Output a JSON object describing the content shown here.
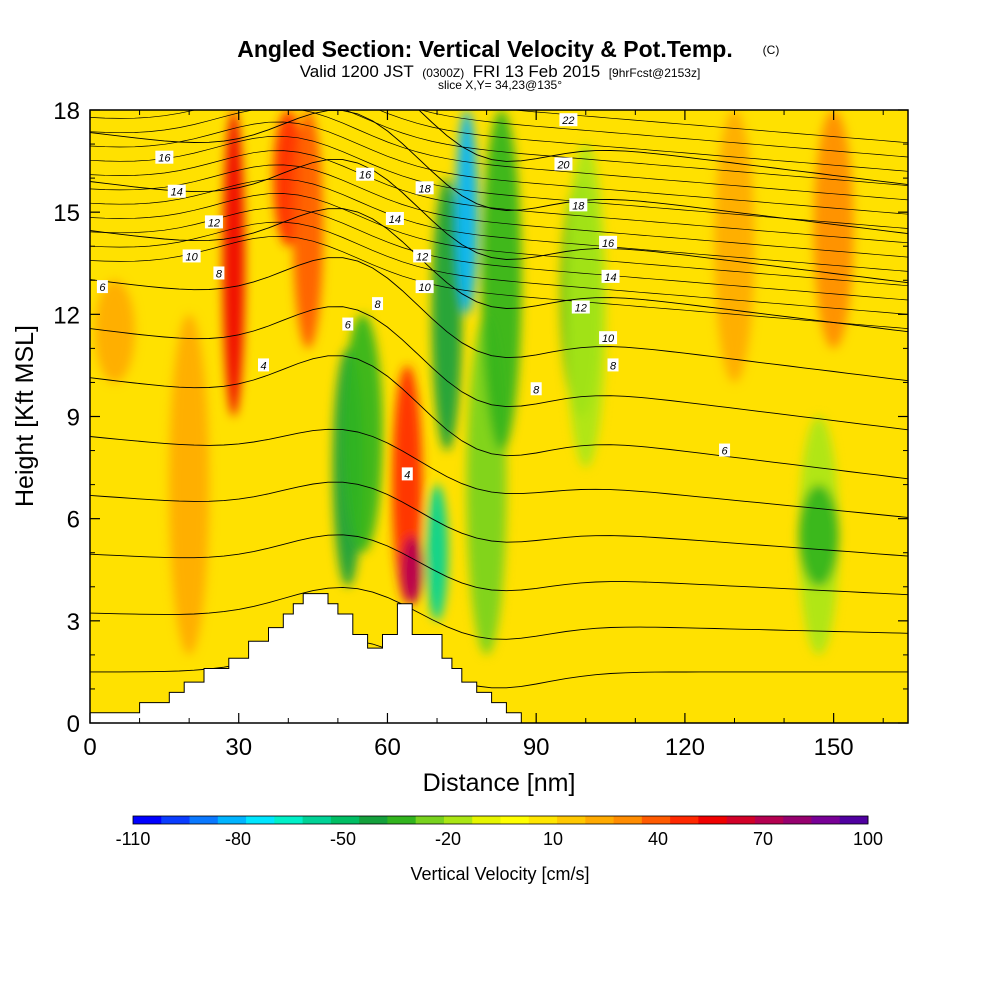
{
  "chart_data": {
    "type": "heatmap",
    "title": "Angled Section: Vertical Velocity & Pot.Temp.",
    "title_unit": "(C)",
    "subtitle": {
      "valid": "Valid 1200 JST",
      "zulu": "(0300Z)",
      "date": "FRI 13 Feb 2015",
      "forecast": "[9hrFcst@2153z]"
    },
    "slice_label": "slice X,Y= 34,23@135°",
    "xlabel": "Distance [nm]",
    "ylabel": "Height [Kft MSL]",
    "xlim": [
      0,
      165
    ],
    "ylim": [
      0,
      18
    ],
    "x_ticks": [
      "0",
      "30",
      "60",
      "90",
      "120",
      "150"
    ],
    "y_ticks": [
      "0",
      "3",
      "6",
      "9",
      "12",
      "15",
      "18"
    ],
    "colorbar": {
      "label": "Vertical Velocity [cm/s]",
      "tick_labels": [
        "-110",
        "-80",
        "-50",
        "-20",
        "10",
        "40",
        "70",
        "100"
      ],
      "colors": [
        "#0000ff",
        "#0a3cff",
        "#0a78ff",
        "#00b4ff",
        "#00e6ff",
        "#00f0c8",
        "#00d296",
        "#00be64",
        "#14a03c",
        "#32b41e",
        "#78d21e",
        "#aae614",
        "#e6f500",
        "#ffff00",
        "#ffe600",
        "#ffc800",
        "#ffaa00",
        "#ff8c00",
        "#ff5a00",
        "#ff2800",
        "#f00000",
        "#d20028",
        "#b40050",
        "#96006e",
        "#780096",
        "#5000a0"
      ]
    },
    "terrain_profile": {
      "x": [
        0,
        10,
        10,
        16,
        16,
        19,
        19,
        23,
        23,
        28,
        28,
        32,
        32,
        36,
        36,
        39,
        39,
        41,
        41,
        43,
        43,
        48,
        48,
        50,
        50,
        53,
        53,
        56,
        56,
        59,
        59,
        62,
        62,
        65,
        65,
        71,
        71,
        73,
        73,
        75,
        75,
        78,
        78,
        81,
        81,
        84,
        84,
        87,
        87,
        92,
        92,
        165
      ],
      "y": [
        0.3,
        0.3,
        0.6,
        0.6,
        0.9,
        0.9,
        1.2,
        1.2,
        1.6,
        1.6,
        1.9,
        1.9,
        2.4,
        2.4,
        2.8,
        2.8,
        3.2,
        3.2,
        3.5,
        3.5,
        3.8,
        3.8,
        3.5,
        3.5,
        3.2,
        3.2,
        2.6,
        2.6,
        2.2,
        2.2,
        2.6,
        2.6,
        3.5,
        3.5,
        2.6,
        2.6,
        1.9,
        1.9,
        1.6,
        1.6,
        1.2,
        1.2,
        0.9,
        0.9,
        0.6,
        0.6,
        0.3,
        0.3,
        0.0,
        0.0,
        0.0,
        0.0
      ]
    },
    "vertical_velocity_features": [
      {
        "x": 29,
        "y_range": [
          9,
          18
        ],
        "value": 55
      },
      {
        "x": 40,
        "y_range": [
          14,
          18
        ],
        "value": 45
      },
      {
        "x": 44,
        "y_range": [
          11,
          18
        ],
        "value": 40
      },
      {
        "x": 52,
        "y_range": [
          4,
          11
        ],
        "value": -45
      },
      {
        "x": 55,
        "y_range": [
          5,
          12
        ],
        "value": -30
      },
      {
        "x": 64,
        "y_range": [
          3.5,
          10.5
        ],
        "value": 45
      },
      {
        "x": 65,
        "y_range": [
          3.5,
          5.5
        ],
        "value": 70
      },
      {
        "x": 70,
        "y_range": [
          3,
          7
        ],
        "value": -60
      },
      {
        "x": 72,
        "y_range": [
          8,
          16
        ],
        "value": -45
      },
      {
        "x": 76,
        "y_range": [
          12,
          18
        ],
        "value": -85
      },
      {
        "x": 80,
        "y_range": [
          2,
          12
        ],
        "value": -25
      },
      {
        "x": 83,
        "y_range": [
          8,
          18
        ],
        "value": -30
      },
      {
        "x": 99,
        "y_range": [
          9,
          16
        ],
        "value": -30
      },
      {
        "x": 100,
        "y_range": [
          7.5,
          17
        ],
        "value": -20
      },
      {
        "x": 147,
        "y_range": [
          2,
          9
        ],
        "value": -20
      },
      {
        "x": 147,
        "y_range": [
          4,
          7
        ],
        "value": -30
      },
      {
        "x": 130,
        "y_range": [
          10,
          18
        ],
        "value": 25
      },
      {
        "x": 150,
        "y_range": [
          11,
          18
        ],
        "value": 30
      },
      {
        "x": 5,
        "y_range": [
          10,
          13
        ],
        "value": 20
      },
      {
        "x": 20,
        "y_range": [
          2,
          12
        ],
        "value": 25
      }
    ],
    "theta_contours": {
      "levels": [
        0,
        2,
        4,
        6,
        8,
        10,
        12,
        14,
        16,
        18,
        20,
        22
      ],
      "contour_labels": [
        {
          "text": "16",
          "x": 15,
          "y": 16.6
        },
        {
          "text": "14",
          "x": 17.5,
          "y": 15.6
        },
        {
          "text": "12",
          "x": 25,
          "y": 14.7
        },
        {
          "text": "10",
          "x": 20.5,
          "y": 13.7
        },
        {
          "text": "8",
          "x": 26,
          "y": 13.2
        },
        {
          "text": "6",
          "x": 2.5,
          "y": 12.8
        },
        {
          "text": "16",
          "x": 55.5,
          "y": 16.1
        },
        {
          "text": "18",
          "x": 67.5,
          "y": 15.7
        },
        {
          "text": "14",
          "x": 61.5,
          "y": 14.8
        },
        {
          "text": "12",
          "x": 67,
          "y": 13.7
        },
        {
          "text": "10",
          "x": 67.5,
          "y": 12.8
        },
        {
          "text": "8",
          "x": 58,
          "y": 12.3
        },
        {
          "text": "6",
          "x": 52,
          "y": 11.7
        },
        {
          "text": "4",
          "x": 35,
          "y": 10.5
        },
        {
          "text": "4",
          "x": 64,
          "y": 7.3
        },
        {
          "text": "22",
          "x": 96.5,
          "y": 17.7
        },
        {
          "text": "20",
          "x": 95.5,
          "y": 16.4
        },
        {
          "text": "18",
          "x": 98.5,
          "y": 15.2
        },
        {
          "text": "16",
          "x": 104.5,
          "y": 14.1
        },
        {
          "text": "14",
          "x": 105,
          "y": 13.1
        },
        {
          "text": "12",
          "x": 99,
          "y": 12.2
        },
        {
          "text": "10",
          "x": 104.5,
          "y": 11.3
        },
        {
          "text": "8",
          "x": 105.5,
          "y": 10.5
        },
        {
          "text": "8",
          "x": 90,
          "y": 9.8
        },
        {
          "text": "6",
          "x": 128,
          "y": 8.0
        }
      ]
    }
  }
}
